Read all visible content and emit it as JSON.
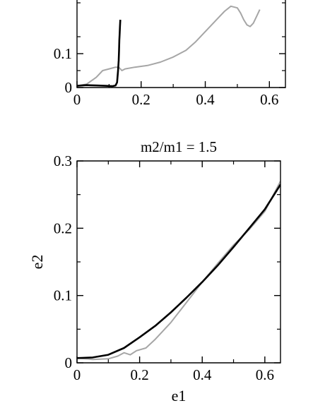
{
  "chart_data": [
    {
      "type": "line",
      "title": "",
      "xlabel": "",
      "ylabel": "",
      "xlim": [
        0,
        0.65
      ],
      "ylim": [
        0,
        0.3
      ],
      "xticks": [
        0,
        0.2,
        0.4,
        0.6
      ],
      "xtick_labels": [
        "0",
        "0.2",
        "0.4",
        "0.6"
      ],
      "yticks": [
        0,
        0.1
      ],
      "ytick_labels": [
        "0",
        "0.1"
      ],
      "grid": false,
      "series": [
        {
          "color": "#a6a6a6",
          "x": [
            0.0,
            0.03,
            0.06,
            0.08,
            0.1,
            0.12,
            0.13,
            0.135,
            0.14,
            0.15,
            0.18,
            0.22,
            0.26,
            0.3,
            0.34,
            0.37,
            0.4,
            0.42,
            0.44,
            0.46,
            0.48,
            0.5,
            0.51,
            0.52,
            0.53,
            0.54,
            0.55,
            0.56,
            0.57
          ],
          "y": [
            0.005,
            0.01,
            0.03,
            0.05,
            0.055,
            0.06,
            0.06,
            0.055,
            0.05,
            0.055,
            0.06,
            0.065,
            0.075,
            0.09,
            0.11,
            0.135,
            0.165,
            0.185,
            0.205,
            0.225,
            0.24,
            0.235,
            0.22,
            0.2,
            0.185,
            0.18,
            0.19,
            0.21,
            0.23
          ]
        },
        {
          "color": "#000000",
          "x": [
            0.0,
            0.03,
            0.06,
            0.09,
            0.11,
            0.12,
            0.125,
            0.128,
            0.13,
            0.131,
            0.132,
            0.133,
            0.134,
            0.135
          ],
          "y": [
            0.005,
            0.007,
            0.006,
            0.005,
            0.004,
            0.006,
            0.015,
            0.05,
            0.08,
            0.11,
            0.14,
            0.16,
            0.18,
            0.2
          ]
        }
      ]
    },
    {
      "type": "line",
      "title": "m2/m1 = 1.5",
      "xlabel": "e1",
      "ylabel": "e2",
      "xlim": [
        0,
        0.65
      ],
      "ylim": [
        0,
        0.3
      ],
      "xticks": [
        0,
        0.2,
        0.4,
        0.6
      ],
      "xtick_labels": [
        "0",
        "0.2",
        "0.4",
        "0.6"
      ],
      "yticks": [
        0,
        0.1,
        0.2,
        0.3
      ],
      "ytick_labels": [
        "0",
        "0.1",
        "0.2",
        "0.3"
      ],
      "grid": false,
      "series": [
        {
          "color": "#a6a6a6",
          "x": [
            0.0,
            0.05,
            0.1,
            0.13,
            0.15,
            0.17,
            0.19,
            0.22,
            0.25,
            0.3,
            0.35,
            0.4,
            0.45,
            0.5,
            0.55,
            0.6,
            0.65
          ],
          "y": [
            0.007,
            0.005,
            0.006,
            0.01,
            0.015,
            0.012,
            0.018,
            0.022,
            0.035,
            0.06,
            0.09,
            0.12,
            0.148,
            0.175,
            0.198,
            0.225,
            0.27
          ]
        },
        {
          "color": "#000000",
          "x": [
            0.0,
            0.05,
            0.1,
            0.15,
            0.2,
            0.25,
            0.3,
            0.35,
            0.4,
            0.45,
            0.5,
            0.55,
            0.6,
            0.65
          ],
          "y": [
            0.007,
            0.008,
            0.012,
            0.022,
            0.038,
            0.055,
            0.075,
            0.097,
            0.12,
            0.145,
            0.172,
            0.2,
            0.228,
            0.265
          ]
        }
      ]
    }
  ]
}
